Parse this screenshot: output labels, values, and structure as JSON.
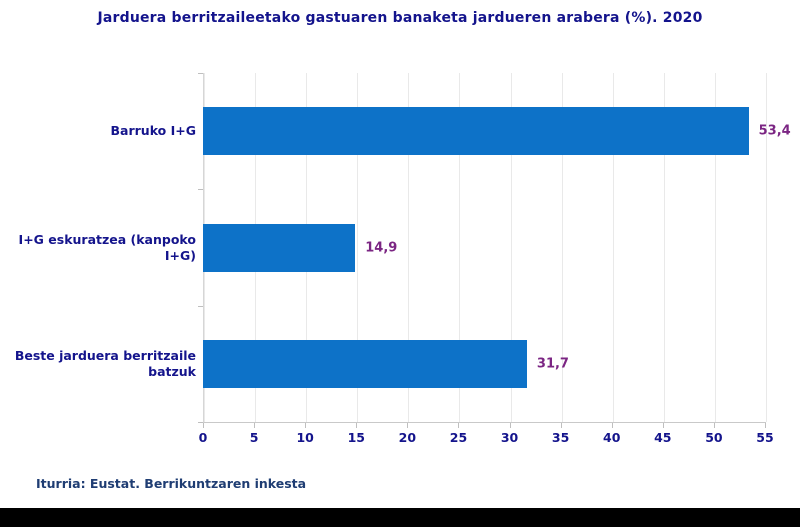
{
  "title": "Jarduera berritzaileetako gastuaren banaketa jardueren arabera (%). 2020",
  "source": "Iturria: Eustat. Berrikuntzaren inkesta",
  "chart_data": {
    "type": "bar",
    "orientation": "horizontal",
    "title": "Jarduera berritzaileetako gastuaren banaketa jardueren arabera (%). 2020",
    "categories": [
      "Barruko I+G",
      "I+G eskuratzea (kanpoko I+G)",
      "Beste jarduera berritzaile batzuk"
    ],
    "values": [
      53.4,
      14.9,
      31.7
    ],
    "value_labels": [
      "53,4",
      "14,9",
      "31,7"
    ],
    "xlabel": "",
    "ylabel": "",
    "xlim": [
      0,
      55
    ],
    "xticks": [
      0,
      5,
      10,
      15,
      20,
      25,
      30,
      35,
      40,
      45,
      50,
      55
    ],
    "grid": true,
    "legend": false,
    "colors": {
      "bar": "#0D72C8",
      "value_label": "#7B2583",
      "axis_text": "#14148C",
      "gridline": "#E9E9E9",
      "title_text": "#14148C",
      "source_text": "#1F3D73"
    }
  }
}
